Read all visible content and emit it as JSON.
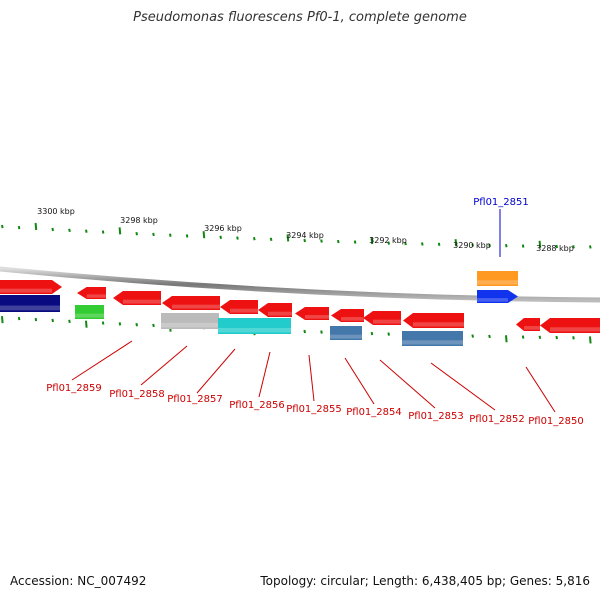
{
  "title": "Pseudomonas fluorescens Pf0-1, complete genome",
  "footer": {
    "accession": "Accession: NC_007492",
    "summary": "Topology: circular; Length: 6,438,405 bp; Genes: 5,816"
  },
  "scale_labels": [
    "3300 kbp",
    "3298 kbp",
    "3296 kbp",
    "3294 kbp",
    "3292 kbp",
    "3290 kbp",
    "3288 kbp"
  ],
  "gene_labels": [
    {
      "text": "Pfl01_2851",
      "color": "#0000cc"
    },
    {
      "text": "Pfl01_2859",
      "color": "#cc0000"
    },
    {
      "text": "Pfl01_2858",
      "color": "#cc0000"
    },
    {
      "text": "Pfl01_2857",
      "color": "#cc0000"
    },
    {
      "text": "Pfl01_2856",
      "color": "#cc0000"
    },
    {
      "text": "Pfl01_2855",
      "color": "#cc0000"
    },
    {
      "text": "Pfl01_2854",
      "color": "#cc0000"
    },
    {
      "text": "Pfl01_2853",
      "color": "#cc0000"
    },
    {
      "text": "Pfl01_2852",
      "color": "#cc0000"
    },
    {
      "text": "Pfl01_2850",
      "color": "#cc0000"
    }
  ],
  "colors": {
    "gene_red": "#ee1111",
    "gene_red_shade": "#ff8080",
    "tick_green": "#118811",
    "backbone": "#888888",
    "navy": "#0a0a80",
    "green": "#33cc33",
    "gray": "#bbbbbb",
    "cyan": "#22cccc",
    "steelblue": "#4477aa",
    "orange": "#ff9922",
    "blue": "#1133ee"
  }
}
